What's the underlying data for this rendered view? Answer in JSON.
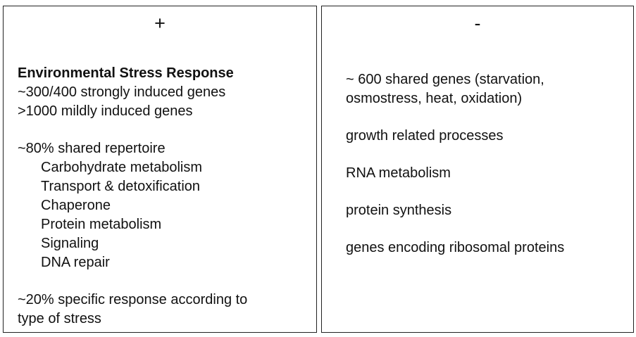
{
  "left": {
    "sign": "+",
    "title": "Environmental Stress Response",
    "strong": "~300/400 strongly induced genes",
    "mild": ">1000 mildly induced genes",
    "shared": "~80% shared repertoire",
    "items": [
      "Carbohydrate metabolism",
      "Transport & detoxification",
      "Chaperone",
      "Protein metabolism",
      "Signaling",
      "DNA repair"
    ],
    "specific_line1": "~20% specific response according to",
    "specific_line2": "type of stress"
  },
  "right": {
    "sign": "-",
    "shared_line1": "~ 600 shared genes (starvation,",
    "shared_line2": "osmostress, heat, oxidation)",
    "growth": "growth related processes",
    "rna": "RNA metabolism",
    "protein": "protein synthesis",
    "ribosomal": "genes encoding ribosomal proteins"
  }
}
